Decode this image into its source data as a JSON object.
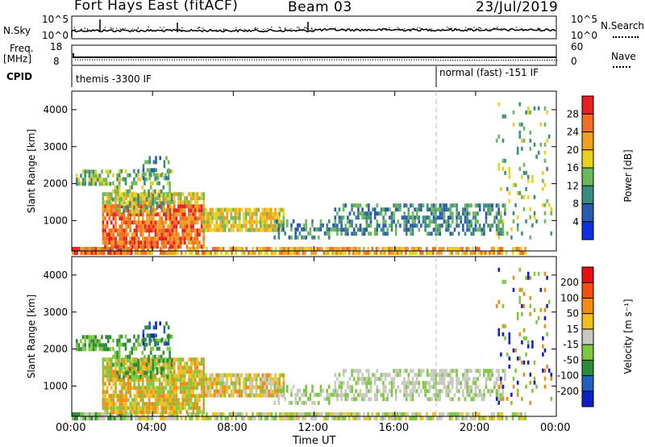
{
  "header": {
    "radar": "Fort Hays East (fitACF)",
    "beam": "Beam 03",
    "date": "23/Jul/2019"
  },
  "noise_panel": {
    "left_label": "N.Sky",
    "right_label": "N.Search",
    "left_top": "10^5",
    "left_bottom": "10^0",
    "right_top": "10^5",
    "right_bottom": "10^0"
  },
  "freq_panel": {
    "left_label_1": "Freq.",
    "left_label_2": "[MHz]",
    "right_label": "Nave",
    "left_top": "18",
    "left_bottom": "8",
    "right_top": "60",
    "right_bottom": "0"
  },
  "cpid_panel": {
    "label": "CPID",
    "modes": [
      {
        "text": "themis -3300 IF"
      },
      {
        "text": "normal (fast) -151 IF"
      }
    ]
  },
  "time_axis": {
    "label": "Time UT",
    "ticks": [
      "00:00",
      "04:00",
      "08:00",
      "12:00",
      "16:00",
      "20:00",
      "00:00"
    ]
  },
  "chart_data": [
    {
      "type": "heatmap",
      "name": "power",
      "ylabel": "Slant Range [km]",
      "y_ticks": [
        1000,
        2000,
        3000,
        4000
      ],
      "ylim": [
        180,
        4500
      ],
      "xlim": [
        0,
        24
      ],
      "colorbar": {
        "label": "Power [dB]",
        "tick_labels": [
          "4",
          "8",
          "12",
          "16",
          "20",
          "24",
          "28"
        ],
        "colors": [
          "#1030e0",
          "#2a5ab0",
          "#3d8a80",
          "#6ab85a",
          "#e8d020",
          "#f0a020",
          "#f07020",
          "#e82020"
        ]
      }
    },
    {
      "type": "heatmap",
      "name": "velocity",
      "ylabel": "Slant Range [km]",
      "y_ticks": [
        1000,
        2000,
        3000,
        4000
      ],
      "ylim": [
        180,
        4500
      ],
      "xlim": [
        0,
        24
      ],
      "colorbar": {
        "label": "Velocity [m s⁻¹]",
        "tick_labels": [
          "200",
          "100",
          "50",
          "15",
          "-15",
          "-50",
          "-100",
          "-200"
        ],
        "colors": [
          "#1020c0",
          "#2060c0",
          "#2e8a3a",
          "#7cc83e",
          "#c8c8c0",
          "#f0c020",
          "#f08c10",
          "#f05010",
          "#e81010"
        ]
      }
    }
  ],
  "colors": {
    "grid_dash": "#bbbbbb",
    "frame": "#000000"
  }
}
